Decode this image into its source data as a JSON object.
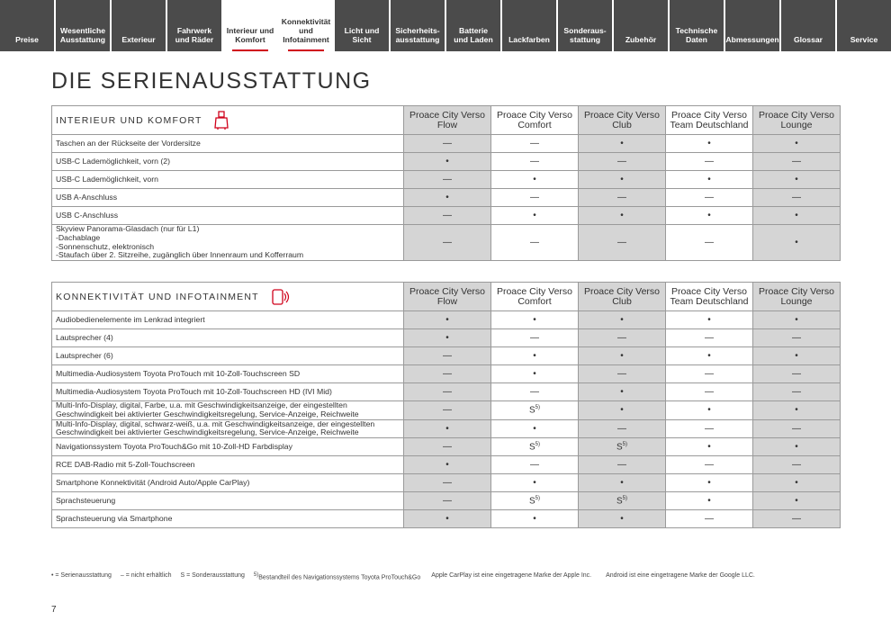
{
  "nav": {
    "tabs": [
      {
        "label": "Preise"
      },
      {
        "label": "Wesentliche\nAusstattung"
      },
      {
        "label": "Exterieur"
      },
      {
        "label": "Fahrwerk\nund Räder"
      },
      {
        "label": "Interieur und\nKomfort",
        "active": true
      },
      {
        "label": "Konnektivität\nund\nInfotainment",
        "active": true
      },
      {
        "label": "Licht und Sicht"
      },
      {
        "label": "Sicherheits-\nausstattung"
      },
      {
        "label": "Batterie\nund Laden"
      },
      {
        "label": "Lackfarben"
      },
      {
        "label": "Sonderaus-\nstattung"
      },
      {
        "label": "Zubehör"
      },
      {
        "label": "Technische\nDaten"
      },
      {
        "label": "Abmessungen"
      },
      {
        "label": "Glossar"
      },
      {
        "label": "Service"
      }
    ]
  },
  "header": {
    "title": "DIE SERIENAUSSTATTUNG"
  },
  "tables": [
    {
      "title": "INTERIEUR UND KOMFORT",
      "icon": "seat",
      "columns": [
        "Proace City Verso\nFlow",
        "Proace City Verso\nComfort",
        "Proace City Verso\nClub",
        "Proace City Verso\nTeam Deutschland",
        "Proace City Verso\nLounge"
      ],
      "rows": [
        {
          "label": "Taschen an der Rückseite der Vordersitze",
          "cells": [
            "—",
            "—",
            "•",
            "•",
            "•"
          ]
        },
        {
          "label": "USB-C Lademöglichkeit, vorn (2)",
          "cells": [
            "•",
            "—",
            "—",
            "—",
            "—"
          ]
        },
        {
          "label": "USB-C Lademöglichkeit, vorn",
          "cells": [
            "—",
            "•",
            "•",
            "•",
            "•"
          ]
        },
        {
          "label": "USB A-Anschluss",
          "cells": [
            "•",
            "—",
            "—",
            "—",
            "—"
          ]
        },
        {
          "label": "USB C-Anschluss",
          "cells": [
            "—",
            "•",
            "•",
            "•",
            "•"
          ]
        },
        {
          "label": "Skyview Panorama-Glasdach (nur für L1)\n-Dachablage\n-Sonnenschutz, elektronisch\n-Staufach über 2. Sitzreihe, zugänglich über Innenraum und Kofferraum",
          "cells": [
            "—",
            "—",
            "—",
            "—",
            "•"
          ]
        }
      ]
    },
    {
      "title": "KONNEKTIVITÄT UND INFOTAINMENT",
      "icon": "phone",
      "columns": [
        "Proace City Verso\nFlow",
        "Proace City Verso\nComfort",
        "Proace City Verso\nClub",
        "Proace City Verso\nTeam Deutschland",
        "Proace City Verso\nLounge"
      ],
      "rows": [
        {
          "label": "Audiobedienelemente im Lenkrad integriert",
          "cells": [
            "•",
            "•",
            "•",
            "•",
            "•"
          ]
        },
        {
          "label": "Lautsprecher (4)",
          "cells": [
            "•",
            "—",
            "—",
            "—",
            "—"
          ]
        },
        {
          "label": "Lautsprecher (6)",
          "cells": [
            "—",
            "•",
            "•",
            "•",
            "•"
          ]
        },
        {
          "label": "Multimedia-Audiosystem Toyota ProTouch mit 10-Zoll-Touchscreen SD",
          "cells": [
            "—",
            "•",
            "—",
            "—",
            "—"
          ]
        },
        {
          "label": "Multimedia-Audiosystem Toyota ProTouch mit 10-Zoll-Touchscreen HD (IVI Mid)",
          "cells": [
            "—",
            "—",
            "•",
            "—",
            "—"
          ]
        },
        {
          "label": "Multi-Info-Display, digital, Farbe, u.a. mit Geschwindigkeitsanzeige, der eingestellten\nGeschwindigkeit bei aktivierter Geschwindigkeitsregelung, Service-Anzeige, Reichweite",
          "cells": [
            "—",
            {
              "text": "S",
              "note": "5)"
            },
            "•",
            "•",
            "•"
          ]
        },
        {
          "label": "Multi-Info-Display, digital, schwarz-weiß, u.a. mit Geschwindigkeitsanzeige, der eingestellten\nGeschwindigkeit bei aktivierter Geschwindigkeitsregelung, Service-Anzeige, Reichweite",
          "cells": [
            "•",
            "•",
            "—",
            "—",
            "—"
          ]
        },
        {
          "label": "Navigationssystem Toyota ProTouch&Go mit 10-Zoll-HD Farbdisplay",
          "cells": [
            "—",
            {
              "text": "S",
              "note": "5)"
            },
            {
              "text": "S",
              "note": "5)"
            },
            "•",
            "•"
          ]
        },
        {
          "label": "RCE DAB-Radio mit 5-Zoll-Touchscreen",
          "cells": [
            "•",
            "—",
            "—",
            "—",
            "—"
          ]
        },
        {
          "label": "Smartphone Konnektivität (Android Auto/Apple CarPlay)",
          "cells": [
            "—",
            "•",
            "•",
            "•",
            "•"
          ]
        },
        {
          "label": "Sprachsteuerung",
          "cells": [
            "—",
            {
              "text": "S",
              "note": "5)"
            },
            {
              "text": "S",
              "note": "5)"
            },
            "•",
            "•"
          ]
        },
        {
          "label": "Sprachsteuerung via Smartphone",
          "cells": [
            "•",
            "•",
            "•",
            "—",
            "—"
          ]
        }
      ]
    }
  ],
  "footer": {
    "notes": [
      {
        "text": "• = Serienausstattung"
      },
      {
        "text": "– = nicht erhältlich"
      },
      {
        "text": "S = Sonderausstattung"
      },
      {
        "note": "5)",
        "text": "Bestandteil des Navigationssystems Toyota ProTouch&Go"
      },
      {
        "text": "Apple CarPlay ist eine eingetragene Marke der Apple Inc."
      },
      {
        "text": "Android ist eine eingetragene Marke der Google LLC."
      }
    ],
    "page_number": "7"
  }
}
